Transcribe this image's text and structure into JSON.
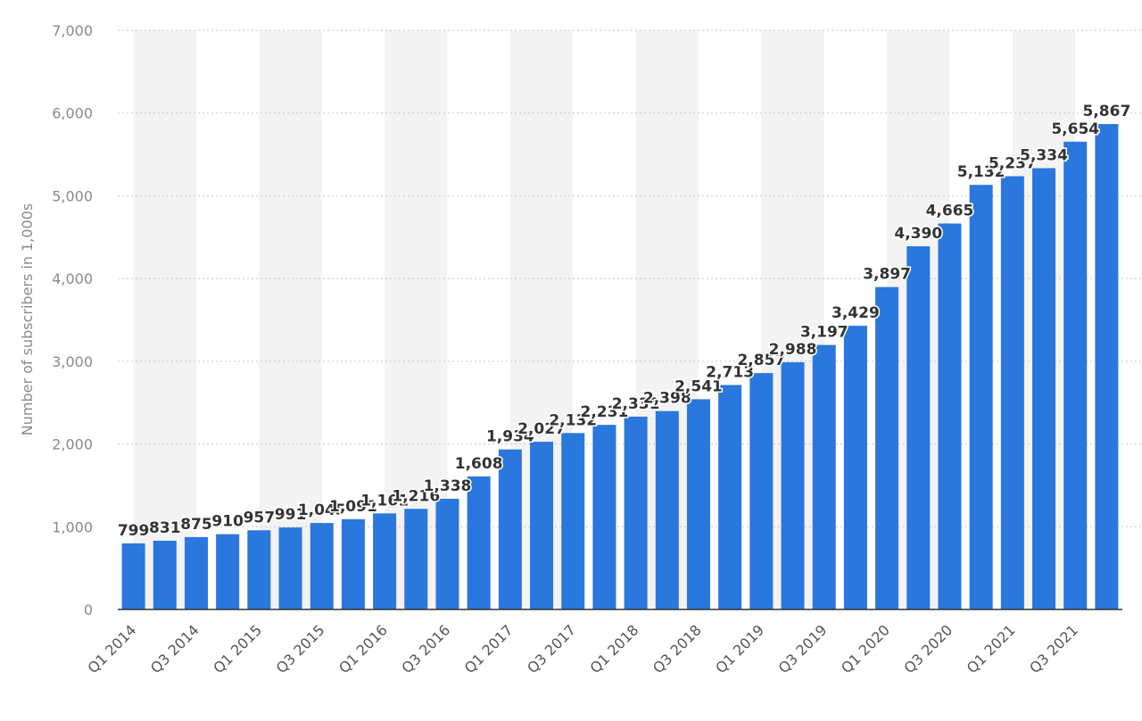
{
  "chart_data": {
    "type": "bar",
    "ylabel": "Number of subscribers in 1,000s",
    "ylim": [
      0,
      7000
    ],
    "yticks": [
      0,
      1000,
      2000,
      3000,
      4000,
      5000,
      6000,
      7000
    ],
    "ytick_labels": [
      "0",
      "1,000",
      "2,000",
      "3,000",
      "4,000",
      "5,000",
      "6,000",
      "7,000"
    ],
    "grid": "horizontal dotted",
    "bar_color": "#2a77dd",
    "band_color": "#f3f3f3",
    "categories": [
      "Q1 2014",
      "Q2 2014",
      "Q3 2014",
      "Q4 2014",
      "Q1 2015",
      "Q2 2015",
      "Q3 2015",
      "Q4 2015",
      "Q1 2016",
      "Q2 2016",
      "Q3 2016",
      "Q4 2016",
      "Q1 2017",
      "Q2 2017",
      "Q3 2017",
      "Q4 2017",
      "Q1 2018",
      "Q2 2018",
      "Q3 2018",
      "Q4 2018",
      "Q1 2019",
      "Q2 2019",
      "Q3 2019",
      "Q4 2019",
      "Q1 2020",
      "Q2 2020",
      "Q3 2020",
      "Q4 2020",
      "Q1 2021",
      "Q2 2021",
      "Q3 2021",
      "Q4 2021"
    ],
    "x_tick_labels": [
      "Q1 2014",
      "Q3 2014",
      "Q1 2015",
      "Q3 2015",
      "Q1 2016",
      "Q3 2016",
      "Q1 2017",
      "Q3 2017",
      "Q1 2018",
      "Q3 2018",
      "Q1 2019",
      "Q3 2019",
      "Q1 2020",
      "Q3 2020",
      "Q1 2021",
      "Q3 2021"
    ],
    "values": [
      799,
      831,
      875,
      910,
      957,
      991,
      1045,
      1091,
      1161,
      1216,
      1338,
      1608,
      1934,
      2027,
      2132,
      2231,
      2331,
      2398,
      2541,
      2713,
      2857,
      2988,
      3197,
      3429,
      3897,
      4390,
      4665,
      5132,
      5237,
      5334,
      5654,
      5867
    ],
    "value_labels": [
      "799",
      "831",
      "875",
      "910",
      "957",
      "991",
      "1,045",
      "1,091",
      "1,161",
      "1,216",
      "1,338",
      "1,608",
      "1,934",
      "2,027",
      "2,132",
      "2,231",
      "2,331",
      "2,398",
      "2,541",
      "2,713",
      "2,857",
      "2,988",
      "3,197",
      "3,429",
      "3,897",
      "4,390",
      "4,665",
      "5,132",
      "5,237",
      "5,334",
      "5,654",
      "5,867"
    ]
  }
}
